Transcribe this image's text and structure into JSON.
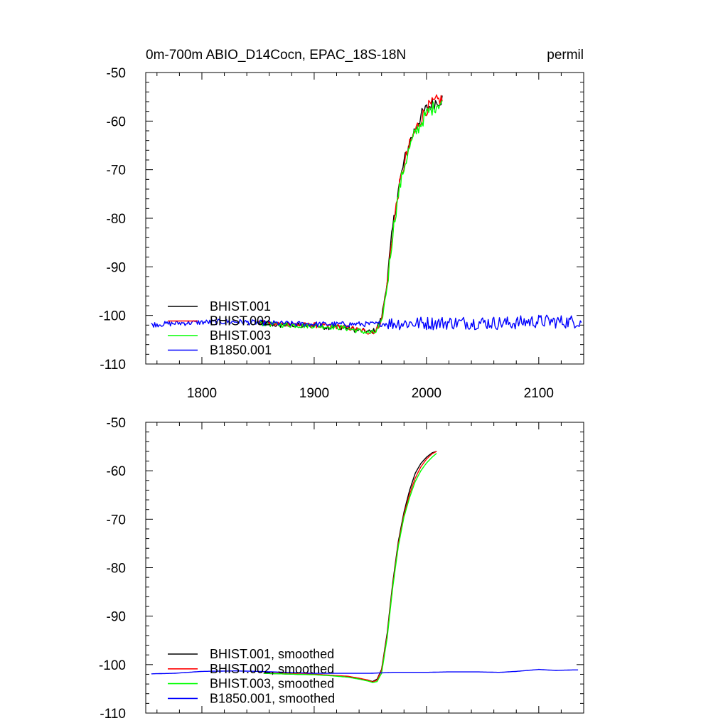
{
  "header": {
    "title": "0m-700m ABIO_D14Cocn, EPAC_18S-18N",
    "units": "permil"
  },
  "colors": {
    "BHIST.001": "#000000",
    "BHIST.002": "#ff0000",
    "BHIST.003": "#00ff00",
    "B1850.001": "#0000ff"
  },
  "chart_data": [
    {
      "type": "line",
      "title": "0m-700m ABIO_D14Cocn, EPAC_18S-18N",
      "units": "permil",
      "xlim": [
        1750,
        2140
      ],
      "ylim": [
        -110,
        -50
      ],
      "x_ticks": [
        1800,
        1900,
        2000,
        2100
      ],
      "x_tick_labels": [
        "1800",
        "1900",
        "2000",
        "2100"
      ],
      "y_ticks": [
        -50,
        -60,
        -70,
        -80,
        -90,
        -100,
        -110
      ],
      "y_tick_labels": [
        "-50",
        "-60",
        "-70",
        "-80",
        "-90",
        "-100",
        "-110"
      ],
      "legend_position": "bottom-left",
      "legend": [
        "BHIST.001",
        "BHIST.002",
        "BHIST.003",
        "B1850.001"
      ],
      "series": [
        {
          "name": "BHIST.001",
          "color": "#000000",
          "x": [
            1850,
            1860,
            1870,
            1880,
            1890,
            1900,
            1910,
            1920,
            1930,
            1940,
            1950,
            1955,
            1960,
            1965,
            1970,
            1975,
            1980,
            1985,
            1990,
            1995,
            2000,
            2005,
            2010,
            2014
          ],
          "y": [
            -101.6,
            -101.8,
            -102.0,
            -101.9,
            -102.2,
            -101.9,
            -102.4,
            -102.3,
            -102.6,
            -103.1,
            -103.4,
            -103.0,
            -100.5,
            -93.0,
            -82.0,
            -74.0,
            -68.5,
            -64.5,
            -61.5,
            -59.0,
            -57.5,
            -56.5,
            -55.8,
            -55.5
          ]
        },
        {
          "name": "BHIST.002",
          "color": "#ff0000",
          "x": [
            1850,
            1860,
            1870,
            1880,
            1890,
            1900,
            1910,
            1920,
            1930,
            1940,
            1950,
            1955,
            1960,
            1965,
            1970,
            1975,
            1980,
            1985,
            1990,
            1995,
            2000,
            2005,
            2010,
            2014
          ],
          "y": [
            -101.4,
            -101.7,
            -101.8,
            -101.8,
            -102.0,
            -102.0,
            -102.2,
            -102.3,
            -102.5,
            -103.0,
            -103.5,
            -103.2,
            -101.0,
            -93.5,
            -82.5,
            -74.5,
            -69.0,
            -65.0,
            -62.0,
            -59.5,
            -57.5,
            -56.5,
            -55.8,
            -55.5
          ]
        },
        {
          "name": "BHIST.003",
          "color": "#00ff00",
          "x": [
            1850,
            1860,
            1870,
            1880,
            1890,
            1900,
            1910,
            1920,
            1930,
            1940,
            1950,
            1955,
            1960,
            1965,
            1970,
            1975,
            1980,
            1985,
            1990,
            1995,
            2000,
            2005,
            2010,
            2014
          ],
          "y": [
            -101.5,
            -101.8,
            -101.9,
            -102.0,
            -102.1,
            -102.1,
            -102.3,
            -102.4,
            -102.7,
            -103.2,
            -103.6,
            -103.4,
            -101.5,
            -94.0,
            -83.0,
            -75.0,
            -69.5,
            -65.5,
            -62.5,
            -60.5,
            -58.5,
            -57.5,
            -56.5,
            -56.0
          ]
        },
        {
          "name": "B1850.001",
          "color": "#0000ff",
          "x": [
            1755,
            1780,
            1800,
            1830,
            1850,
            1880,
            1900,
            1930,
            1950,
            1975,
            2000,
            2025,
            2050,
            2075,
            2090,
            2100,
            2125,
            2138
          ],
          "y": [
            -101.9,
            -101.6,
            -101.4,
            -101.3,
            -101.5,
            -101.7,
            -101.8,
            -101.8,
            -101.8,
            -101.6,
            -101.6,
            -101.5,
            -101.5,
            -101.6,
            -101.3,
            -101.2,
            -101.3,
            -101.2
          ]
        }
      ]
    },
    {
      "type": "line",
      "xlim": [
        1750,
        2140
      ],
      "ylim": [
        -110,
        -50
      ],
      "x_ticks": [
        1800,
        1900,
        2000,
        2100
      ],
      "y_ticks": [
        -50,
        -60,
        -70,
        -80,
        -90,
        -100,
        -110
      ],
      "y_tick_labels": [
        "-50",
        "-60",
        "-70",
        "-80",
        "-90",
        "-100",
        "-110"
      ],
      "legend_position": "bottom-left",
      "legend": [
        "BHIST.001, smoothed",
        "BHIST.002, smoothed",
        "BHIST.003, smoothed",
        "B1850.001, smoothed"
      ],
      "series": [
        {
          "name": "BHIST.001, smoothed",
          "color": "#000000",
          "x": [
            1855,
            1870,
            1885,
            1900,
            1915,
            1930,
            1940,
            1948,
            1952,
            1956,
            1960,
            1965,
            1970,
            1975,
            1980,
            1985,
            1990,
            1995,
            2000,
            2005,
            2009
          ],
          "y": [
            -101.8,
            -101.9,
            -102.0,
            -102.0,
            -102.2,
            -102.5,
            -102.9,
            -103.2,
            -103.5,
            -103.0,
            -101.0,
            -93.5,
            -83.0,
            -74.5,
            -68.5,
            -64.0,
            -60.5,
            -58.5,
            -57.2,
            -56.3,
            -56.0
          ]
        },
        {
          "name": "BHIST.002, smoothed",
          "color": "#ff0000",
          "x": [
            1855,
            1870,
            1885,
            1900,
            1915,
            1930,
            1940,
            1948,
            1952,
            1956,
            1960,
            1965,
            1970,
            1975,
            1980,
            1985,
            1990,
            1995,
            2000,
            2005,
            2009
          ],
          "y": [
            -101.7,
            -101.8,
            -101.9,
            -102.0,
            -102.2,
            -102.4,
            -102.8,
            -103.2,
            -103.6,
            -103.2,
            -101.2,
            -94.0,
            -83.5,
            -75.0,
            -69.0,
            -64.8,
            -61.5,
            -59.2,
            -57.6,
            -56.5,
            -56.0
          ]
        },
        {
          "name": "BHIST.003, smoothed",
          "color": "#00ff00",
          "x": [
            1855,
            1870,
            1885,
            1900,
            1915,
            1930,
            1940,
            1948,
            1952,
            1956,
            1960,
            1965,
            1970,
            1975,
            1980,
            1985,
            1990,
            1995,
            2000,
            2005,
            2009
          ],
          "y": [
            -101.8,
            -101.9,
            -102.0,
            -102.1,
            -102.3,
            -102.6,
            -103.0,
            -103.4,
            -103.7,
            -103.5,
            -101.8,
            -94.5,
            -84.0,
            -75.5,
            -69.5,
            -65.5,
            -62.2,
            -60.0,
            -58.4,
            -57.2,
            -56.4
          ]
        },
        {
          "name": "B1850.001, smoothed",
          "color": "#0000ff",
          "x": [
            1755,
            1775,
            1800,
            1830,
            1850,
            1875,
            1900,
            1925,
            1950,
            1970,
            2000,
            2020,
            2045,
            2065,
            2080,
            2100,
            2115,
            2130,
            2135
          ],
          "y": [
            -101.9,
            -101.8,
            -101.4,
            -101.3,
            -101.4,
            -101.6,
            -101.8,
            -101.8,
            -101.8,
            -101.6,
            -101.6,
            -101.5,
            -101.5,
            -101.6,
            -101.4,
            -101.0,
            -101.2,
            -101.1,
            -101.1
          ]
        }
      ]
    }
  ]
}
